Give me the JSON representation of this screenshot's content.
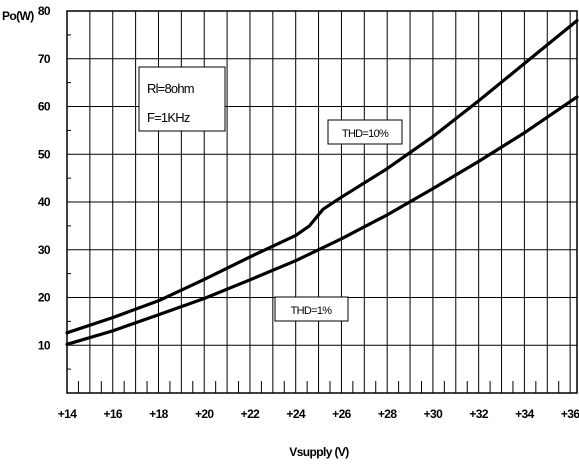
{
  "chart_data": {
    "type": "line",
    "ylabel": "Po(W)",
    "xlabel": "Vsupply (V)",
    "xlim": [
      14,
      36.3
    ],
    "ylim": [
      0,
      80
    ],
    "x_ticks": [
      14,
      16,
      18,
      20,
      22,
      24,
      26,
      28,
      30,
      32,
      34,
      36
    ],
    "x_tick_labels": [
      "+14",
      "+16",
      "+18",
      "+20",
      "+22",
      "+24",
      "+26",
      "+28",
      "+30",
      "+32",
      "+34",
      "+36"
    ],
    "y_ticks": [
      10,
      20,
      30,
      40,
      50,
      60,
      70,
      80
    ],
    "y_tick_labels": [
      "10",
      "20",
      "30",
      "40",
      "50",
      "60",
      "70",
      "80"
    ],
    "grid": true,
    "conditions": [
      "Rl=8ohm",
      "F=1KHz"
    ],
    "series": [
      {
        "name": "THD=10%",
        "x": [
          14,
          16,
          18,
          20,
          22,
          24,
          24.6,
          25.2,
          26,
          28,
          30,
          32,
          34,
          36.3
        ],
        "y": [
          12.6,
          15.8,
          19.3,
          23.8,
          28.5,
          33,
          35,
          38.5,
          41,
          47,
          53.7,
          61.2,
          69,
          78
        ]
      },
      {
        "name": "THD=1%",
        "x": [
          14,
          16,
          18,
          20,
          22,
          24,
          26,
          28,
          30,
          32,
          34,
          36.3
        ],
        "y": [
          10.2,
          13,
          16.4,
          19.8,
          23.7,
          27.7,
          32.3,
          37.3,
          42.8,
          48.5,
          54.5,
          62
        ]
      }
    ]
  }
}
